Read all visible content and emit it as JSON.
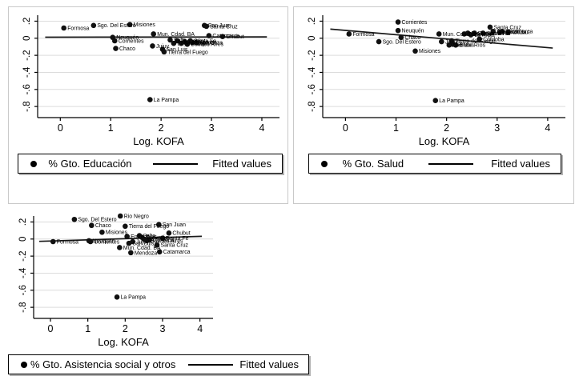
{
  "colors": {
    "marker": "#111111",
    "fit_line": "#1a1a1a",
    "grid": "#dcdcdc",
    "axis": "#000000",
    "text": "#000000",
    "panel_border": "#c9c9c9",
    "legend_border": "#000000",
    "legend_shadow": "#b3b3b3",
    "background": "#ffffff"
  },
  "chart_data": [
    {
      "id": "educacion",
      "type": "scatter",
      "title": "",
      "xlabel": "Log. KOFA",
      "ylabel": "",
      "xlim": [
        -0.45,
        4.35
      ],
      "ylim": [
        -0.93,
        0.27
      ],
      "xticks": [
        0,
        1,
        2,
        3,
        4
      ],
      "xtick_labels": [
        "0",
        "1",
        "2",
        "3",
        "4"
      ],
      "ytick_values": [
        0.2,
        0,
        -0.2,
        -0.4,
        -0.6,
        -0.8
      ],
      "ytick_labels": [
        ".2",
        "0",
        "-.2",
        "-.4",
        "-.6",
        "-.8"
      ],
      "grid": "horizontal-only",
      "legend": {
        "position": "bottom",
        "marker": "filled-circle",
        "series_label": "% Gto. Educación",
        "fitted_label": "Fitted values"
      },
      "fit_line": {
        "x1": -0.3,
        "y1": 0.012,
        "x2": 4.1,
        "y2": 0.016
      },
      "points": [
        {
          "x": 0.07,
          "y": 0.12,
          "label": "Formosa"
        },
        {
          "x": 0.66,
          "y": 0.15,
          "label": "Sgo. Del Estero"
        },
        {
          "x": 1.38,
          "y": 0.16,
          "label": "Misiones"
        },
        {
          "x": 1.04,
          "y": 0.01,
          "label": "Neuquén"
        },
        {
          "x": 1.08,
          "y": -0.03,
          "label": "Corrientes"
        },
        {
          "x": 1.1,
          "y": -0.12,
          "label": "Chaco"
        },
        {
          "x": 1.85,
          "y": 0.05,
          "label": "Mun. Cdad. BA"
        },
        {
          "x": 1.83,
          "y": -0.09,
          "label": "Jujuy"
        },
        {
          "x": 2.03,
          "y": -0.13,
          "label": "San Luis"
        },
        {
          "x": 2.06,
          "y": -0.16,
          "label": "Tierra del Fuego"
        },
        {
          "x": 1.78,
          "y": -0.72,
          "label": "La Pampa"
        },
        {
          "x": 2.86,
          "y": 0.15,
          "label": "San Juan"
        },
        {
          "x": 2.9,
          "y": 0.14,
          "label": "Santa Cruz"
        },
        {
          "x": 2.95,
          "y": 0.03,
          "label": "Catamarca"
        },
        {
          "x": 3.22,
          "y": 0.02,
          "label": "Chubut"
        },
        {
          "x": 2.18,
          "y": -0.02,
          "label": "Salta"
        },
        {
          "x": 2.25,
          "y": -0.06,
          "label": "Entre Ríos"
        },
        {
          "x": 2.32,
          "y": -0.03,
          "label": "Tucumán"
        },
        {
          "x": 2.4,
          "y": -0.06,
          "label": "Rio Negro"
        },
        {
          "x": 2.47,
          "y": -0.04,
          "label": "La Rioja"
        },
        {
          "x": 2.52,
          "y": -0.07,
          "label": "Buenos Aires"
        },
        {
          "x": 2.58,
          "y": -0.03,
          "label": "Santa Fe"
        },
        {
          "x": 2.62,
          "y": -0.05,
          "label": "Córdoba"
        },
        {
          "x": 2.7,
          "y": -0.05,
          "label": "Mendoza"
        }
      ]
    },
    {
      "id": "salud",
      "type": "scatter",
      "title": "",
      "xlabel": "Log. KOFA",
      "ylabel": "",
      "xlim": [
        -0.45,
        4.35
      ],
      "ylim": [
        -0.93,
        0.27
      ],
      "xticks": [
        0,
        1,
        2,
        3,
        4
      ],
      "xtick_labels": [
        "0",
        "1",
        "2",
        "3",
        "4"
      ],
      "ytick_values": [
        0.2,
        0,
        -0.2,
        -0.4,
        -0.6,
        -0.8
      ],
      "ytick_labels": [
        ".2",
        "0",
        "-.2",
        "-.4",
        "-.6",
        "-.8"
      ],
      "grid": "horizontal-only",
      "legend": {
        "position": "bottom",
        "marker": "filled-circle",
        "series_label": "% Gto. Salud",
        "fitted_label": "Fitted values"
      },
      "fit_line": {
        "x1": -0.3,
        "y1": 0.107,
        "x2": 4.1,
        "y2": -0.115
      },
      "points": [
        {
          "x": 0.07,
          "y": 0.05,
          "label": "Formosa"
        },
        {
          "x": 0.66,
          "y": -0.04,
          "label": "Sgo. Del Estero"
        },
        {
          "x": 1.04,
          "y": 0.19,
          "label": "Corrientes"
        },
        {
          "x": 1.04,
          "y": 0.09,
          "label": "Neuquén"
        },
        {
          "x": 1.1,
          "y": 0.01,
          "label": "Chaco"
        },
        {
          "x": 1.38,
          "y": -0.15,
          "label": "Misiones"
        },
        {
          "x": 1.85,
          "y": 0.05,
          "label": "Mun. Cdad. BA"
        },
        {
          "x": 1.9,
          "y": -0.04,
          "label": "Jujuy"
        },
        {
          "x": 2.1,
          "y": -0.03,
          "label": "Tierra del Fuego"
        },
        {
          "x": 2.05,
          "y": -0.08,
          "label": "San Luis"
        },
        {
          "x": 2.12,
          "y": -0.07,
          "label": "Salta"
        },
        {
          "x": 2.18,
          "y": -0.08,
          "label": "Entre Ríos"
        },
        {
          "x": 2.35,
          "y": 0.05,
          "label": "Tucumán"
        },
        {
          "x": 2.42,
          "y": 0.06,
          "label": "Rio Negro"
        },
        {
          "x": 2.48,
          "y": 0.04,
          "label": "La Rioja"
        },
        {
          "x": 2.55,
          "y": 0.06,
          "label": "Buenos Aires"
        },
        {
          "x": 2.65,
          "y": -0.01,
          "label": "Córdoba"
        },
        {
          "x": 2.72,
          "y": 0.06,
          "label": "Santa Fe"
        },
        {
          "x": 2.86,
          "y": 0.13,
          "label": "Santa Cruz"
        },
        {
          "x": 2.92,
          "y": 0.08,
          "label": "San Juan"
        },
        {
          "x": 3.05,
          "y": 0.07,
          "label": "Mendoza"
        },
        {
          "x": 3.1,
          "y": 0.08,
          "label": "Catamarca"
        },
        {
          "x": 3.22,
          "y": 0.07,
          "label": "Chubut"
        },
        {
          "x": 1.78,
          "y": -0.73,
          "label": "La Pampa"
        }
      ]
    },
    {
      "id": "asistencia",
      "type": "scatter",
      "title": "",
      "xlabel": "Log. KOFA",
      "ylabel": "",
      "xlim": [
        -0.45,
        4.35
      ],
      "ylim": [
        -0.93,
        0.27
      ],
      "xticks": [
        0,
        1,
        2,
        3,
        4
      ],
      "xtick_labels": [
        "0",
        "1",
        "2",
        "3",
        "4"
      ],
      "ytick_values": [
        0.2,
        0,
        -0.2,
        -0.4,
        -0.6,
        -0.8
      ],
      "ytick_labels": [
        ".2",
        "0",
        "-.2",
        "-.4",
        "-.6",
        "-.8"
      ],
      "grid": "horizontal-only",
      "legend": {
        "position": "bottom",
        "marker": "filled-circle",
        "series_label": "% Gto. Asistencia social y otros",
        "fitted_label": "Fitted values"
      },
      "fit_line": {
        "x1": -0.3,
        "y1": -0.027,
        "x2": 4.05,
        "y2": 0.032
      },
      "points": [
        {
          "x": 0.07,
          "y": -0.03,
          "label": "Formosa"
        },
        {
          "x": 0.64,
          "y": 0.23,
          "label": "Sgo. Del Estero"
        },
        {
          "x": 1.1,
          "y": 0.16,
          "label": "Chaco"
        },
        {
          "x": 1.03,
          "y": -0.02,
          "label": "Neuquén"
        },
        {
          "x": 1.07,
          "y": -0.03,
          "label": "Corrientes"
        },
        {
          "x": 1.38,
          "y": 0.08,
          "label": "Misiones"
        },
        {
          "x": 1.87,
          "y": 0.27,
          "label": "Rio Negro"
        },
        {
          "x": 2.0,
          "y": 0.15,
          "label": "Tierra del Fuego"
        },
        {
          "x": 1.85,
          "y": -0.1,
          "label": "Mun. Cdad. BA"
        },
        {
          "x": 2.05,
          "y": 0.03,
          "label": "Entre Ríos"
        },
        {
          "x": 2.38,
          "y": 0.04,
          "label": "Salta"
        },
        {
          "x": 2.1,
          "y": -0.05,
          "label": "San Luis"
        },
        {
          "x": 2.2,
          "y": -0.03,
          "label": "Jujuy"
        },
        {
          "x": 2.45,
          "y": 0.02,
          "label": "Tucumán"
        },
        {
          "x": 2.5,
          "y": 0.0,
          "label": "La Rioja"
        },
        {
          "x": 2.58,
          "y": -0.02,
          "label": "Buenos Aires"
        },
        {
          "x": 2.65,
          "y": -0.01,
          "label": "Córdoba"
        },
        {
          "x": 2.15,
          "y": -0.16,
          "label": "Mendoza"
        },
        {
          "x": 2.9,
          "y": 0.17,
          "label": "San Juan"
        },
        {
          "x": 3.0,
          "y": 0.01,
          "label": "Santa Fe"
        },
        {
          "x": 2.85,
          "y": -0.07,
          "label": "Santa Cruz"
        },
        {
          "x": 2.92,
          "y": -0.15,
          "label": "Catamarca"
        },
        {
          "x": 3.17,
          "y": 0.07,
          "label": "Chubut"
        },
        {
          "x": 1.78,
          "y": -0.68,
          "label": "La Pampa"
        }
      ]
    }
  ]
}
